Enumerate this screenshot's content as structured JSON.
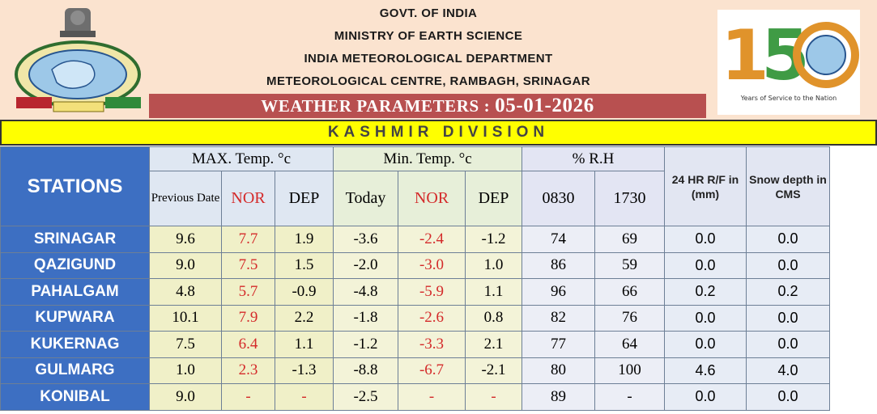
{
  "header": {
    "line1": "GOVT. OF INDIA",
    "line2": "MINISTRY OF EARTH SCIENCE",
    "line3": "INDIA  METEOROLOGICAL  DEPARTMENT",
    "line4": "METEOROLOGICAL CENTRE, RAMBAGH, SRINAGAR",
    "title_label": "WEATHER PARAMETERS :",
    "title_date": "05-01-2026",
    "logo_number": "150",
    "logo_caption": "Years of Service to the Nation"
  },
  "division": "KASHMIR DIVISION",
  "table": {
    "stations_header": "STATIONS",
    "group_max": "MAX. Temp. °c",
    "group_min": "Min. Temp. °c",
    "group_rh": "% R.H",
    "group_rf": "24 HR R/F in (mm)",
    "group_snow": "Snow depth in CMS",
    "sub_prev": "Previous Date",
    "sub_nor1": "NOR",
    "sub_dep1": "DEP",
    "sub_today": "Today",
    "sub_nor2": "NOR",
    "sub_dep2": "DEP",
    "sub_0830": "0830",
    "sub_1730": "1730",
    "rows": [
      {
        "station": "SRINAGAR",
        "max": "9.6",
        "max_nor": "7.7",
        "max_dep": "1.9",
        "min": "-3.6",
        "min_nor": "-2.4",
        "min_dep": "-1.2",
        "rh0830": "74",
        "rh1730": "69",
        "rf": "0.0",
        "snow": "0.0"
      },
      {
        "station": "QAZIGUND",
        "max": "9.0",
        "max_nor": "7.5",
        "max_dep": "1.5",
        "min": "-2.0",
        "min_nor": "-3.0",
        "min_dep": "1.0",
        "rh0830": "86",
        "rh1730": "59",
        "rf": "0.0",
        "snow": "0.0"
      },
      {
        "station": "PAHALGAM",
        "max": "4.8",
        "max_nor": "5.7",
        "max_dep": "-0.9",
        "min": "-4.8",
        "min_nor": "-5.9",
        "min_dep": "1.1",
        "rh0830": "96",
        "rh1730": "66",
        "rf": "0.2",
        "snow": "0.2"
      },
      {
        "station": "KUPWARA",
        "max": "10.1",
        "max_nor": "7.9",
        "max_dep": "2.2",
        "min": "-1.8",
        "min_nor": "-2.6",
        "min_dep": "0.8",
        "rh0830": "82",
        "rh1730": "76",
        "rf": "0.0",
        "snow": "0.0"
      },
      {
        "station": "KUKERNAG",
        "max": "7.5",
        "max_nor": "6.4",
        "max_dep": "1.1",
        "min": "-1.2",
        "min_nor": "-3.3",
        "min_dep": "2.1",
        "rh0830": "77",
        "rh1730": "64",
        "rf": "0.0",
        "snow": "0.0"
      },
      {
        "station": "GULMARG",
        "max": "1.0",
        "max_nor": "2.3",
        "max_dep": "-1.3",
        "min": "-8.8",
        "min_nor": "-6.7",
        "min_dep": "-2.1",
        "rh0830": "80",
        "rh1730": "100",
        "rf": "4.6",
        "snow": "4.0"
      },
      {
        "station": "KONIBAL",
        "max": "9.0",
        "max_nor": "-",
        "max_dep": "-",
        "min": "-2.5",
        "min_nor": "-",
        "min_dep": "-",
        "rh0830": "89",
        "rh1730": "-",
        "rf": "0.0",
        "snow": "0.0"
      }
    ]
  }
}
